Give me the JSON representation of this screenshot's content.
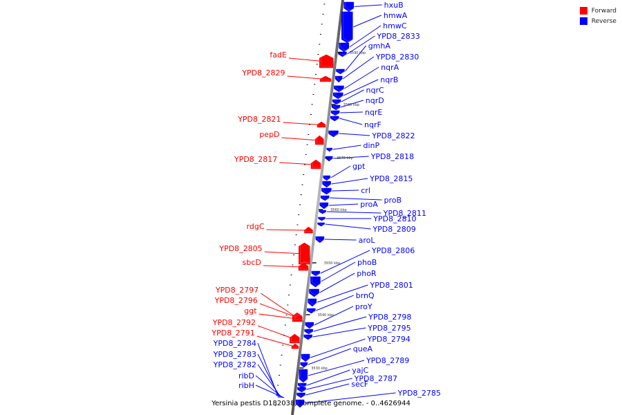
{
  "caption": "Yersinia pestis D182038, complete genome. - 0..4626944",
  "legend": {
    "forward": {
      "label": "Forward",
      "color": "#ff0000"
    },
    "reverse": {
      "label": "Reverse",
      "color": "#0000ff"
    }
  },
  "ticks": [
    "3590 kbp",
    "3580 kbp",
    "3570 kbp",
    "3560 kbp",
    "3550 kbp",
    "3540 kbp",
    "3530 kbp"
  ],
  "forward_genes": [
    "fadE",
    "YPD8_2829",
    "YPD8_2821",
    "pepD",
    "YPD8_2817",
    "rdgC",
    "YPD8_2805",
    "sbcD",
    "YPD8_2797",
    "YPD8_2796",
    "ggt",
    "YPD8_2792",
    "YPD8_2791"
  ],
  "reverse_left_genes": [
    "YPD8_2784",
    "YPD8_2783",
    "YPD8_2782",
    "ribD",
    "ribH"
  ],
  "reverse_genes": [
    "hxuB",
    "hmwA",
    "hmwC",
    "YPD8_2833",
    "gmhA",
    "YPD8_2830",
    "nqrA",
    "nqrB",
    "nqrC",
    "nqrD",
    "nqrE",
    "nqrF",
    "YPD8_2822",
    "dinP",
    "YPD8_2818",
    "gpt",
    "YPD8_2815",
    "crl",
    "proB",
    "proA",
    "YPD8_2811",
    "YPD8_2810",
    "YPD8_2809",
    "aroL",
    "YPD8_2806",
    "phoB",
    "phoR",
    "YPD8_2801",
    "brnQ",
    "proY",
    "YPD8_2798",
    "YPD8_2795",
    "YPD8_2794",
    "queA",
    "YPD8_2789",
    "yajC",
    "YPD8_2787",
    "secF",
    "YPD8_2785"
  ]
}
